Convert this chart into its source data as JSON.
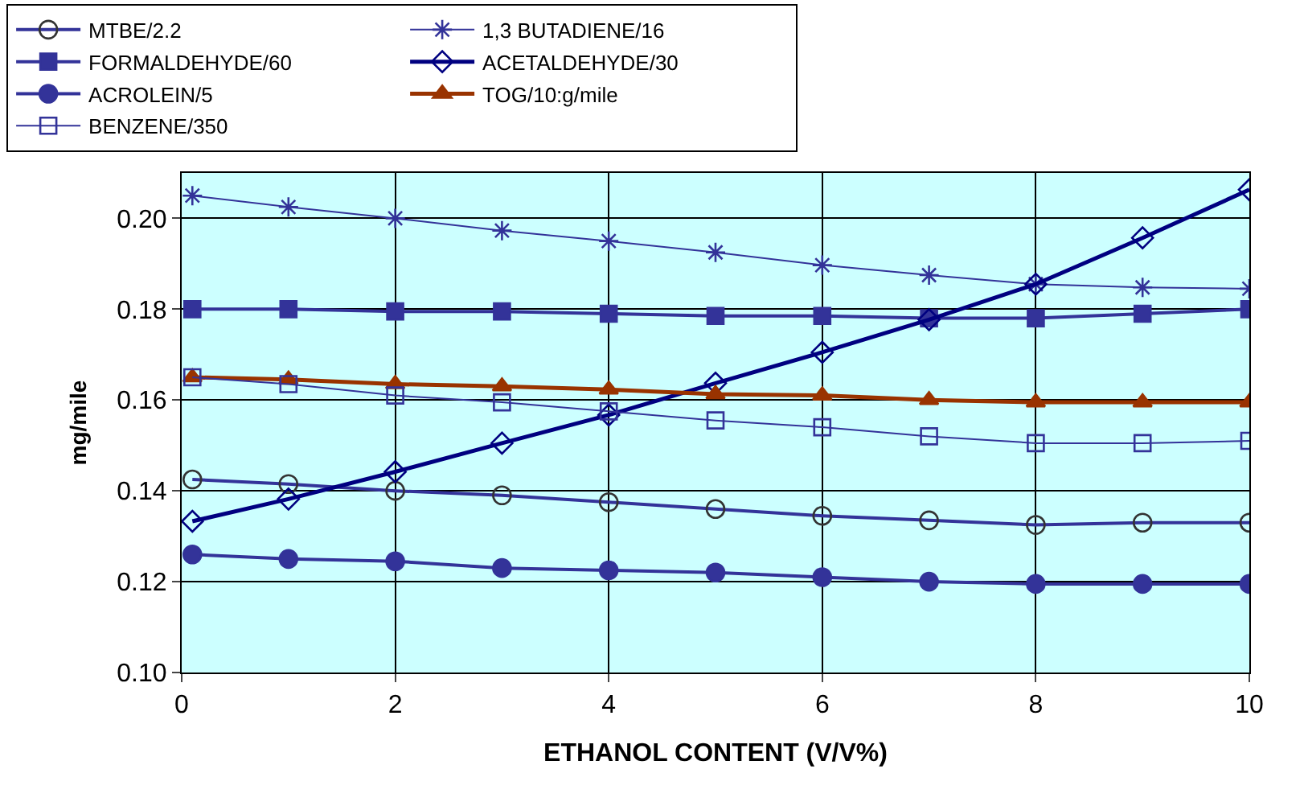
{
  "chart_data": {
    "type": "line",
    "xlabel": "ETHANOL CONTENT (V/V%)",
    "ylabel": "mg/mile",
    "x": [
      0.1,
      1,
      2,
      3,
      4,
      5,
      6,
      7,
      8,
      9,
      10
    ],
    "xlim": [
      0,
      10
    ],
    "xticks": [
      0,
      2,
      4,
      6,
      8,
      10
    ],
    "ylim": [
      0.1,
      0.21
    ],
    "yticks": [
      {
        "value": 0.1,
        "label": "0.10"
      },
      {
        "value": 0.12,
        "label": "0.12"
      },
      {
        "value": 0.14,
        "label": "0.14"
      },
      {
        "value": 0.16,
        "label": "0.16"
      },
      {
        "value": 0.18,
        "label": "0.18"
      },
      {
        "value": 0.2,
        "label": "0.20"
      }
    ],
    "grid": true,
    "legend": "top",
    "series": [
      {
        "name": "MTBE/2.2",
        "color": "#333399",
        "marker": "circle",
        "values": [
          0.1425,
          0.1415,
          0.14,
          0.139,
          0.1375,
          0.136,
          0.1345,
          0.1335,
          0.1325,
          0.133,
          0.133
        ]
      },
      {
        "name": "1,3 BUTADIENE/16",
        "color": "#333399",
        "marker": "cross",
        "values": [
          0.205,
          0.2025,
          0.2,
          0.1973,
          0.195,
          0.1925,
          0.1897,
          0.1875,
          0.1855,
          0.1848,
          0.1845
        ]
      },
      {
        "name": "FORMALDEHYDE/60",
        "color": "#333399",
        "marker": "square",
        "values": [
          0.18,
          0.18,
          0.1795,
          0.1795,
          0.179,
          0.1785,
          0.1785,
          0.178,
          0.178,
          0.179,
          0.18
        ]
      },
      {
        "name": "ACETALDEHYDE/30",
        "color": "#000080",
        "marker": "diamond",
        "values": [
          0.1333,
          0.1382,
          0.1442,
          0.1505,
          0.1567,
          0.1637,
          0.1705,
          0.1777,
          0.1855,
          0.1957,
          0.2063
        ]
      },
      {
        "name": "ACROLEIN/5",
        "color": "#333399",
        "marker": "circle",
        "values": [
          0.126,
          0.125,
          0.1245,
          0.123,
          0.1225,
          0.122,
          0.121,
          0.12,
          0.1195,
          0.1195,
          0.1195
        ]
      },
      {
        "name": "TOG/10:g/mile",
        "color": "#993300",
        "marker": "triangle",
        "values": [
          0.165,
          0.1645,
          0.1635,
          0.163,
          0.1623,
          0.1613,
          0.161,
          0.16,
          0.1595,
          0.1595,
          0.1595
        ]
      },
      {
        "name": "BENZENE/350",
        "color": "#333399",
        "marker": "square",
        "values": [
          0.165,
          0.1635,
          0.161,
          0.1595,
          0.1575,
          0.1555,
          0.154,
          0.152,
          0.1505,
          0.1505,
          0.151
        ]
      }
    ]
  }
}
